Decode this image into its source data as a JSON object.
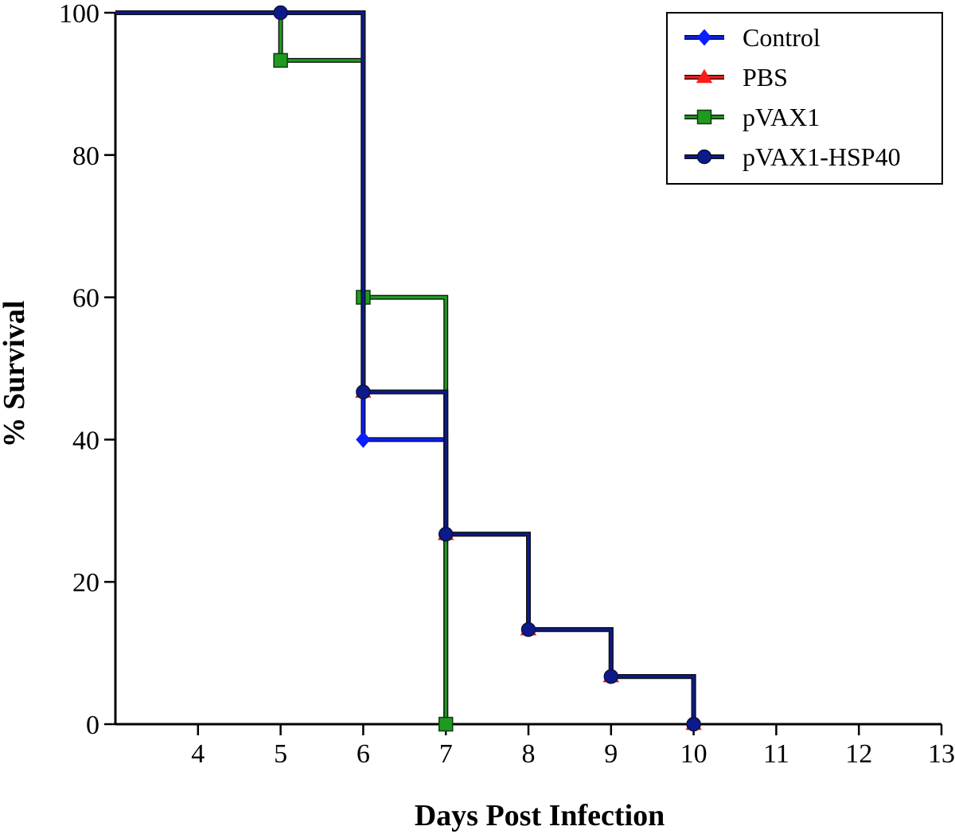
{
  "chart_data": {
    "type": "line",
    "step": true,
    "title": "",
    "xlabel": "Days Post Infection",
    "ylabel": "% Survival",
    "xlim": [
      3,
      13
    ],
    "ylim": [
      0,
      100
    ],
    "x_ticks": [
      4,
      5,
      6,
      7,
      8,
      9,
      10,
      11,
      12,
      13
    ],
    "y_ticks": [
      0,
      20,
      40,
      60,
      80,
      100
    ],
    "grid": false,
    "legend_position": "top-right",
    "series": [
      {
        "name": "Control",
        "color": "#0a1eff",
        "marker": "diamond",
        "points": [
          [
            3,
            100
          ],
          [
            6,
            40
          ],
          [
            7,
            0
          ]
        ]
      },
      {
        "name": "PBS",
        "color": "#ff1a1a",
        "marker": "triangle",
        "points": [
          [
            3,
            100
          ],
          [
            6,
            46.7
          ],
          [
            7,
            26.7
          ],
          [
            8,
            13.3
          ],
          [
            9,
            6.7
          ],
          [
            10,
            0
          ]
        ]
      },
      {
        "name": "pVAX1",
        "color": "#1f9a1f",
        "marker": "square",
        "points": [
          [
            3,
            100
          ],
          [
            5,
            93.3
          ],
          [
            6,
            60
          ],
          [
            7,
            0
          ]
        ]
      },
      {
        "name": "pVAX1-HSP40",
        "color": "#0c1a8c",
        "marker": "circle",
        "points": [
          [
            3,
            100
          ],
          [
            5,
            100
          ],
          [
            6,
            46.7
          ],
          [
            7,
            26.7
          ],
          [
            8,
            13.3
          ],
          [
            9,
            6.7
          ],
          [
            10,
            0
          ]
        ]
      }
    ]
  }
}
